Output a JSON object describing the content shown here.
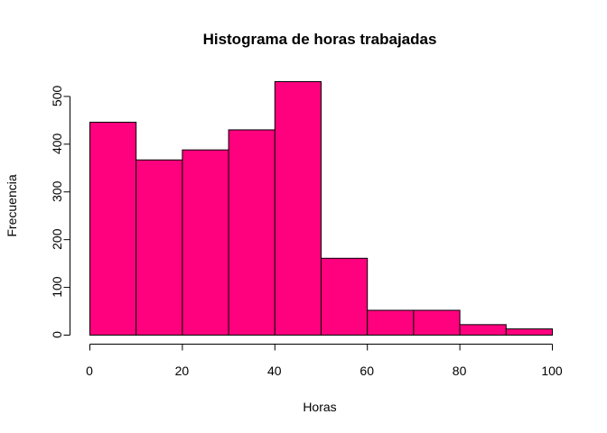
{
  "chart_data": {
    "type": "bar",
    "title": "Histograma de horas trabajadas",
    "xlabel": "Horas",
    "ylabel": "Frecuencia",
    "bin_edges": [
      0,
      10,
      20,
      30,
      40,
      50,
      60,
      70,
      80,
      90,
      100
    ],
    "values": [
      446,
      367,
      388,
      430,
      531,
      161,
      52,
      52,
      22,
      13
    ],
    "xlim": [
      0,
      100
    ],
    "ylim": [
      0,
      531
    ],
    "x_ticks": [
      0,
      20,
      40,
      60,
      80,
      100
    ],
    "y_ticks": [
      0,
      100,
      200,
      300,
      400,
      500
    ],
    "grid": false,
    "colors": {
      "bar_fill": "#FF007F",
      "bar_stroke": "#000000"
    }
  }
}
